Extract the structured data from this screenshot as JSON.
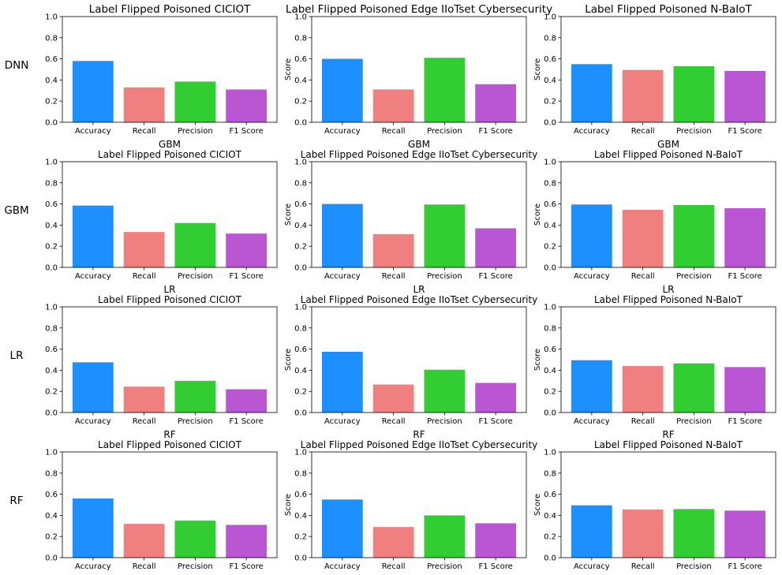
{
  "metrics": [
    "Accuracy",
    "Recall",
    "Precision",
    "F1 Score"
  ],
  "colors": [
    "#1e8fff",
    "#f08080",
    "#32cd32",
    "#ba55d3"
  ],
  "row_labels": [
    "DNN",
    "GBM",
    "LR",
    "RF"
  ],
  "yticks": [
    "0.0",
    "0.2",
    "0.4",
    "0.6",
    "0.8",
    "1.0"
  ],
  "chart_data": [
    {
      "type": "bar",
      "model": "DNN",
      "title": "Label Flipped Poisoned CICIOT",
      "ylabel": "",
      "categories": [
        "Accuracy",
        "Recall",
        "Precision",
        "F1 Score"
      ],
      "values": [
        0.58,
        0.33,
        0.385,
        0.31
      ],
      "ylim": [
        0,
        1
      ]
    },
    {
      "type": "bar",
      "model": "DNN",
      "title": "Label Flipped Poisoned Edge IIoTset Cybersecurity",
      "ylabel": "Score",
      "categories": [
        "Accuracy",
        "Recall",
        "Precision",
        "F1 Score"
      ],
      "values": [
        0.6,
        0.31,
        0.61,
        0.36
      ],
      "ylim": [
        0,
        1
      ]
    },
    {
      "type": "bar",
      "model": "DNN",
      "title": "Label Flipped Poisoned N-BaIoT",
      "ylabel": "Score",
      "categories": [
        "Accuracy",
        "Recall",
        "Precision",
        "F1 Score"
      ],
      "values": [
        0.55,
        0.495,
        0.53,
        0.485
      ],
      "ylim": [
        0,
        1
      ]
    },
    {
      "type": "bar",
      "model": "GBM",
      "subtitle": "GBM",
      "title": "Label Flipped Poisoned CICIOT",
      "ylabel": "",
      "categories": [
        "Accuracy",
        "Recall",
        "Precision",
        "F1 Score"
      ],
      "values": [
        0.585,
        0.335,
        0.42,
        0.32
      ],
      "ylim": [
        0,
        1
      ]
    },
    {
      "type": "bar",
      "model": "GBM",
      "subtitle": "GBM",
      "title": "Label Flipped Poisoned Edge IIoTset Cybersecurity",
      "ylabel": "Score",
      "categories": [
        "Accuracy",
        "Recall",
        "Precision",
        "F1 Score"
      ],
      "values": [
        0.6,
        0.315,
        0.595,
        0.37
      ],
      "ylim": [
        0,
        1
      ]
    },
    {
      "type": "bar",
      "model": "GBM",
      "subtitle": "GBM",
      "title": "Label Flipped Poisoned N-BaIoT",
      "ylabel": "Score",
      "categories": [
        "Accuracy",
        "Recall",
        "Precision",
        "F1 Score"
      ],
      "values": [
        0.595,
        0.545,
        0.59,
        0.56
      ],
      "ylim": [
        0,
        1
      ]
    },
    {
      "type": "bar",
      "model": "LR",
      "subtitle": "LR",
      "title": "Label Flipped Poisoned CICIOT",
      "ylabel": "",
      "categories": [
        "Accuracy",
        "Recall",
        "Precision",
        "F1 Score"
      ],
      "values": [
        0.475,
        0.245,
        0.3,
        0.22
      ],
      "ylim": [
        0,
        1
      ]
    },
    {
      "type": "bar",
      "model": "LR",
      "subtitle": "LR",
      "title": "Label Flipped Poisoned Edge IIoTset Cybersecurity",
      "ylabel": "Score",
      "categories": [
        "Accuracy",
        "Recall",
        "Precision",
        "F1 Score"
      ],
      "values": [
        0.575,
        0.265,
        0.405,
        0.28
      ],
      "ylim": [
        0,
        1
      ]
    },
    {
      "type": "bar",
      "model": "LR",
      "subtitle": "LR",
      "title": "Label Flipped Poisoned N-BaIoT",
      "ylabel": "Score",
      "categories": [
        "Accuracy",
        "Recall",
        "Precision",
        "F1 Score"
      ],
      "values": [
        0.495,
        0.44,
        0.465,
        0.43
      ],
      "ylim": [
        0,
        1
      ]
    },
    {
      "type": "bar",
      "model": "RF",
      "subtitle": "RF",
      "title": "Label Flipped Poisoned CICIOT",
      "ylabel": "",
      "categories": [
        "Accuracy",
        "Recall",
        "Precision",
        "F1 Score"
      ],
      "values": [
        0.56,
        0.32,
        0.35,
        0.31
      ],
      "ylim": [
        0,
        1
      ]
    },
    {
      "type": "bar",
      "model": "RF",
      "subtitle": "RF",
      "title": "Label Flipped Poisoned Edge IIoTset Cybersecurity",
      "ylabel": "Score",
      "categories": [
        "Accuracy",
        "Recall",
        "Precision",
        "F1 Score"
      ],
      "values": [
        0.55,
        0.29,
        0.4,
        0.325
      ],
      "ylim": [
        0,
        1
      ]
    },
    {
      "type": "bar",
      "model": "RF",
      "subtitle": "RF",
      "title": "Label Flipped Poisoned N-BaIoT",
      "ylabel": "Score",
      "categories": [
        "Accuracy",
        "Recall",
        "Precision",
        "F1 Score"
      ],
      "values": [
        0.495,
        0.455,
        0.46,
        0.445
      ],
      "ylim": [
        0,
        1
      ]
    }
  ]
}
